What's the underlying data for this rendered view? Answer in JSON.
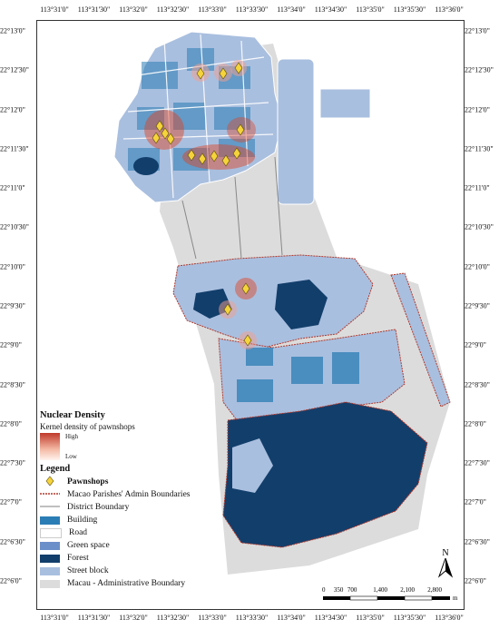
{
  "axes": {
    "top_labels": [
      "113°31'0\"",
      "113°31'30\"",
      "113°32'0\"",
      "113°32'30\"",
      "113°33'0\"",
      "113°33'30\"",
      "113°34'0\"",
      "113°34'30\"",
      "113°35'0\"",
      "113°35'30\"",
      "113°36'0\""
    ],
    "bottom_labels": [
      "113°31'0\"",
      "113°31'30\"",
      "113°32'0\"",
      "113°32'30\"",
      "113°33'0\"",
      "113°33'30\"",
      "113°34'0\"",
      "113°34'30\"",
      "113°35'0\"",
      "113°35'30\"",
      "113°36'0\""
    ],
    "left_labels": [
      "22°13'0\"",
      "22°12'30\"",
      "22°12'0\"",
      "22°11'30\"",
      "22°11'0\"",
      "22°10'30\"",
      "22°10'0\"",
      "22°9'30\"",
      "22°9'0\"",
      "22°8'30\"",
      "22°8'0\"",
      "22°7'30\"",
      "22°7'0\"",
      "22°6'30\"",
      "22°6'0\""
    ],
    "right_labels": [
      "22°13'0\"",
      "22°12'30\"",
      "22°12'0\"",
      "22°11'30\"",
      "22°11'0\"",
      "22°10'30\"",
      "22°10'0\"",
      "22°9'30\"",
      "22°9'0\"",
      "22°8'30\"",
      "22°8'0\"",
      "22°7'30\"",
      "22°7'0\"",
      "22°6'30\"",
      "22°6'0\""
    ]
  },
  "legend": {
    "density_title": "Nuclear Density",
    "density_label": "Kernel density of pawnshops",
    "high": "High",
    "low": "Low",
    "title": "Legend",
    "items": [
      {
        "label": "Pawnshops",
        "color": "#f5d33b"
      },
      {
        "label": "Macao Parishes' Admin Boundaries",
        "color": "#b03a2e"
      },
      {
        "label": "District Boundary",
        "color": "#999999"
      },
      {
        "label": "Building",
        "color": "#2b7db5"
      },
      {
        "label": "Road",
        "color": "#ffffff"
      },
      {
        "label": "Green space",
        "color": "#6b8fc9"
      },
      {
        "label": "Forest",
        "color": "#123e6b"
      },
      {
        "label": "Street block",
        "color": "#a9bfdf"
      },
      {
        "label": "Macau - Administrative Boundary",
        "color": "#dcdcdc"
      }
    ]
  },
  "scale": {
    "ticks": [
      "0",
      "350",
      "700",
      "1,400",
      "2,100",
      "2,800"
    ],
    "unit": "m"
  },
  "north_label": "N",
  "colors": {
    "admin_bg": "#dcdcdc",
    "street_block": "#a9bfdf",
    "forest": "#123e6b",
    "building": "#2b7db5",
    "green": "#6b8fc9"
  }
}
